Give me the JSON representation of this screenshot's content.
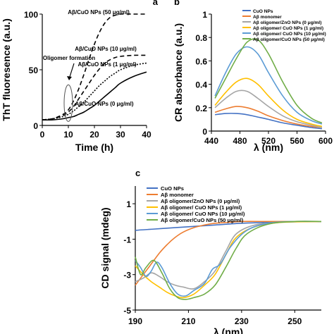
{
  "chart_data": [
    {
      "panel": "a",
      "type": "line",
      "xlabel": "Time (h)",
      "ylabel": "ThT fluoresence (a.u.)",
      "xlim": [
        0,
        40
      ],
      "ylim": [
        0,
        100
      ],
      "xticks": [
        "0",
        "10",
        "20",
        "30",
        "40"
      ],
      "yticks": [
        "0",
        "50",
        "100"
      ],
      "annotations": [
        "Oligomer formation"
      ],
      "series": [
        {
          "name": "Aβ/CuO NPs (50 μg/ml)",
          "style": "dashed",
          "x": [
            0,
            4,
            8,
            10,
            12,
            14,
            16,
            18,
            20,
            22,
            24,
            26,
            28,
            30,
            35,
            40
          ],
          "y": [
            5,
            6,
            10,
            14,
            22,
            33,
            46,
            60,
            73,
            84,
            92,
            97,
            99,
            100,
            100,
            100
          ]
        },
        {
          "name": "Aβ/CuO NPs (10 μg/ml)",
          "style": "dashed",
          "x": [
            0,
            4,
            8,
            10,
            12,
            14,
            16,
            18,
            20,
            22,
            24,
            26,
            28,
            30,
            35,
            40
          ],
          "y": [
            5,
            6,
            9,
            12,
            17,
            24,
            31,
            38,
            45,
            51,
            56,
            59,
            61,
            62,
            63,
            63
          ]
        },
        {
          "name": "Aβ/CuO NPs (1 μg/ml)",
          "style": "dotted",
          "x": [
            0,
            4,
            8,
            10,
            12,
            14,
            16,
            18,
            20,
            22,
            24,
            26,
            28,
            30,
            35,
            40
          ],
          "y": [
            5,
            6,
            8,
            10,
            13,
            17,
            21,
            26,
            31,
            36,
            40,
            44,
            47,
            50,
            54,
            56
          ]
        },
        {
          "name": "Aβ/CuO NPs (0 μg/ml)",
          "style": "solid",
          "x": [
            0,
            4,
            8,
            10,
            12,
            14,
            16,
            18,
            20,
            22,
            24,
            26,
            28,
            30,
            35,
            40
          ],
          "y": [
            5,
            5,
            6,
            7,
            8,
            10,
            12,
            15,
            18,
            22,
            26,
            30,
            34,
            38,
            44,
            48
          ]
        }
      ]
    },
    {
      "panel": "b",
      "type": "line",
      "xlabel": "λ (nm)",
      "ylabel": "CR absorbance (a.u.)",
      "xlim": [
        440,
        600
      ],
      "ylim": [
        0,
        1
      ],
      "xticks": [
        "440",
        "480",
        "520",
        "560",
        "600"
      ],
      "yticks": [
        "0",
        "0.2",
        "0.4",
        "0.6",
        "0.8",
        "1"
      ],
      "series": [
        {
          "name": "CuO NPs",
          "color": "#4472c4",
          "x": [
            445,
            460,
            475,
            490,
            505,
            520,
            540,
            560,
            580,
            595
          ],
          "y": [
            0.14,
            0.15,
            0.15,
            0.14,
            0.12,
            0.1,
            0.07,
            0.05,
            0.03,
            0.02
          ]
        },
        {
          "name": "Aβ monomer",
          "color": "#ed7d31",
          "x": [
            445,
            460,
            475,
            490,
            505,
            520,
            540,
            560,
            580,
            595
          ],
          "y": [
            0.16,
            0.19,
            0.21,
            0.2,
            0.17,
            0.13,
            0.09,
            0.06,
            0.04,
            0.03
          ]
        },
        {
          "name": "Aβ oligomer/ZnO NPs (0 μg/ml)",
          "color": "#a5a5a5",
          "x": [
            445,
            460,
            475,
            490,
            505,
            520,
            540,
            560,
            580,
            595
          ],
          "y": [
            0.2,
            0.28,
            0.34,
            0.34,
            0.28,
            0.21,
            0.13,
            0.08,
            0.05,
            0.03
          ]
        },
        {
          "name": "Aβ oligomer/ CuO NPs (1 μg/ml)",
          "color": "#ffc000",
          "x": [
            445,
            460,
            475,
            490,
            505,
            520,
            540,
            560,
            580,
            595
          ],
          "y": [
            0.22,
            0.33,
            0.42,
            0.45,
            0.4,
            0.3,
            0.18,
            0.1,
            0.06,
            0.04
          ]
        },
        {
          "name": "Aβ oligomer/ CuO NPs (10 μg/ml)",
          "color": "#5b9bd5",
          "x": [
            445,
            460,
            475,
            490,
            505,
            520,
            540,
            560,
            580,
            595
          ],
          "y": [
            0.3,
            0.5,
            0.66,
            0.72,
            0.66,
            0.5,
            0.3,
            0.16,
            0.09,
            0.06
          ]
        },
        {
          "name": "Aβ oligomer/CuO NPs (50 μg/ml)",
          "color": "#70ad47",
          "x": [
            445,
            460,
            475,
            490,
            505,
            520,
            540,
            560,
            580,
            595
          ],
          "y": [
            0.28,
            0.45,
            0.62,
            0.76,
            0.78,
            0.66,
            0.42,
            0.22,
            0.11,
            0.07
          ]
        }
      ]
    },
    {
      "panel": "c",
      "type": "line",
      "xlabel": "λ (nm)",
      "ylabel": "CD signal (mdeg)",
      "xlim": [
        190,
        260
      ],
      "ylim": [
        -5,
        2
      ],
      "xticks": [
        "190",
        "210",
        "230",
        "250"
      ],
      "yticks": [
        "1",
        "-1",
        "-3",
        "-5"
      ],
      "series": [
        {
          "name": "CuO NPs",
          "color": "#4472c4",
          "x": [
            190,
            195,
            200,
            210,
            220,
            230,
            240,
            250,
            260
          ],
          "y": [
            -0.5,
            -0.45,
            -0.4,
            -0.3,
            -0.2,
            -0.1,
            -0.05,
            0,
            0
          ]
        },
        {
          "name": "Aβ monomer",
          "color": "#ed7d31",
          "x": [
            190,
            193,
            196,
            199,
            202,
            205,
            208,
            212,
            216,
            220,
            225,
            230,
            240,
            250,
            260
          ],
          "y": [
            -3.6,
            -3.0,
            -2.4,
            -1.8,
            -1.3,
            -0.9,
            -0.6,
            -0.35,
            -0.2,
            -0.1,
            -0.05,
            0,
            0,
            0,
            0
          ]
        },
        {
          "name": "Aβ oligomer/ZnO NPs (0 μg/ml)",
          "color": "#a5a5a5",
          "x": [
            190,
            193,
            196,
            199,
            202,
            205,
            208,
            212,
            216,
            220,
            224,
            228,
            235,
            245,
            260
          ],
          "y": [
            -3.4,
            -3.2,
            -2.9,
            -3.1,
            -3.4,
            -3.6,
            -3.7,
            -3.8,
            -3.4,
            -2.8,
            -1.7,
            -0.7,
            -0.2,
            -0.05,
            0
          ]
        },
        {
          "name": "Aβ oligomer/ CuO NPs (1 μg/ml)",
          "color": "#ffc000",
          "x": [
            190,
            193,
            196,
            199,
            202,
            205,
            208,
            212,
            216,
            220,
            224,
            228,
            235,
            245,
            260
          ],
          "y": [
            -2.5,
            -3.0,
            -3.4,
            -3.7,
            -4.0,
            -4.2,
            -4.3,
            -4.1,
            -3.6,
            -3.0,
            -1.9,
            -0.9,
            -0.3,
            -0.05,
            0
          ]
        },
        {
          "name": "Aβ oligomer/ CuO NPs (10 μg/ml)",
          "color": "#5b9bd5",
          "x": [
            190,
            192,
            194,
            196,
            198,
            200,
            203,
            206,
            209,
            212,
            216,
            219,
            222,
            226,
            232,
            240,
            250,
            260
          ],
          "y": [
            -2.2,
            -2.6,
            -3.1,
            -2.8,
            -2.3,
            -2.6,
            -3.5,
            -4.1,
            -4.2,
            -3.9,
            -3.5,
            -2.7,
            -2.4,
            -1.4,
            -0.5,
            -0.1,
            0,
            0
          ]
        },
        {
          "name": "Aβ oligomer/CuO NPs (50 μg/ml)",
          "color": "#70ad47",
          "x": [
            190,
            192,
            194,
            197,
            200,
            203,
            206,
            209,
            212,
            216,
            220,
            224,
            228,
            232,
            240,
            250,
            260
          ],
          "y": [
            -2.0,
            -3.0,
            -2.6,
            -2.2,
            -2.9,
            -3.8,
            -4.3,
            -4.4,
            -4.3,
            -4.1,
            -3.6,
            -2.6,
            -1.5,
            -0.7,
            -0.15,
            0,
            0
          ]
        }
      ]
    }
  ],
  "panel_labels": {
    "a": "a",
    "b": "b",
    "c": "c"
  }
}
